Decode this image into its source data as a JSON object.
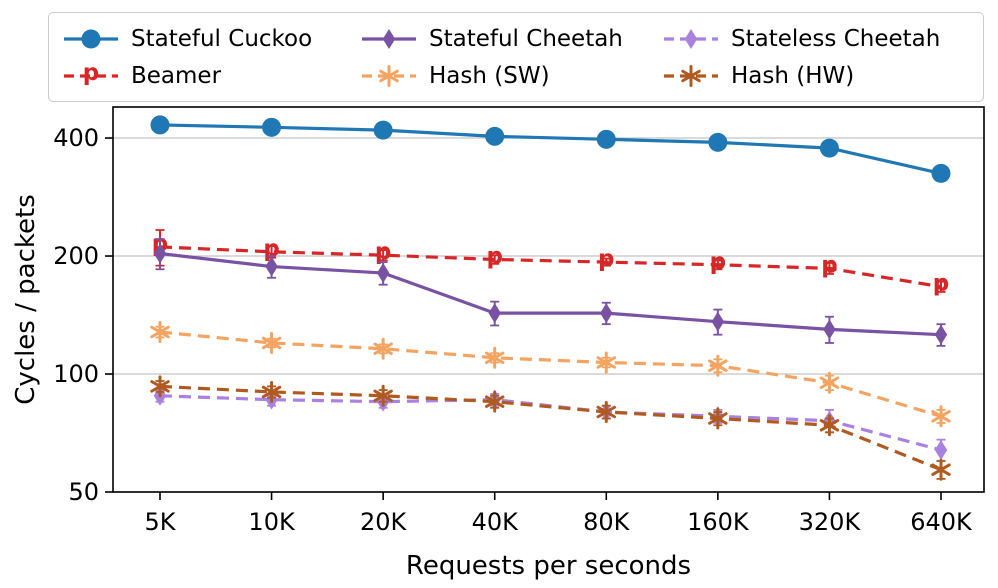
{
  "chart_data": {
    "type": "line",
    "title": "",
    "xlabel": "Requests per seconds",
    "ylabel": "Cycles / packets",
    "y_scale": "log",
    "ylim": [
      50,
      480
    ],
    "y_tick_values": [
      400,
      200,
      100,
      50
    ],
    "y_tick_labels": [
      "400",
      "200",
      "100",
      "50"
    ],
    "grid": true,
    "legend_position": "top",
    "categories": [
      "5K",
      "10K",
      "20K",
      "40K",
      "80K",
      "160K",
      "320K",
      "640K"
    ],
    "series": [
      {
        "name": "Stateful Cuckoo",
        "color": "#1f77b4",
        "linestyle": "solid",
        "marker": "circle",
        "values": [
          432,
          426,
          419,
          404,
          397,
          390,
          377,
          325
        ],
        "errors": [
          3,
          3,
          3,
          3,
          3,
          3,
          4,
          5
        ]
      },
      {
        "name": "Beamer",
        "color": "#d62728",
        "linestyle": "dashed",
        "marker": "p",
        "values": [
          211,
          205,
          201,
          196,
          193,
          190,
          186,
          167
        ],
        "errors": [
          22,
          7,
          6,
          5,
          4,
          5,
          6,
          5
        ]
      },
      {
        "name": "Stateful Cheetah",
        "color": "#7a52a3",
        "linestyle": "solid",
        "marker": "diamond",
        "values": [
          203,
          188,
          181,
          143,
          143,
          136,
          130,
          126
        ],
        "errors": [
          18,
          12,
          12,
          10,
          9,
          10,
          10,
          8
        ]
      },
      {
        "name": "Hash (SW)",
        "color": "#f4a460",
        "linestyle": "dashed",
        "marker": "star",
        "values": [
          128,
          120,
          116,
          110,
          107,
          105,
          95,
          78
        ],
        "errors": [
          4,
          3,
          3,
          3,
          3,
          4,
          4,
          3
        ]
      },
      {
        "name": "Stateless Cheetah",
        "color": "#a981e0",
        "linestyle": "dashed",
        "marker": "diamond",
        "values": [
          88,
          86,
          85,
          86,
          80,
          78,
          76,
          64
        ],
        "errors": [
          3,
          3,
          3,
          3,
          3,
          3,
          5,
          4
        ]
      },
      {
        "name": "Hash (HW)",
        "color": "#b05a20",
        "linestyle": "dashed",
        "marker": "star",
        "values": [
          93,
          90,
          88,
          85,
          80,
          77,
          74,
          57
        ],
        "errors": [
          3,
          3,
          3,
          3,
          3,
          3,
          3,
          3
        ]
      }
    ]
  }
}
